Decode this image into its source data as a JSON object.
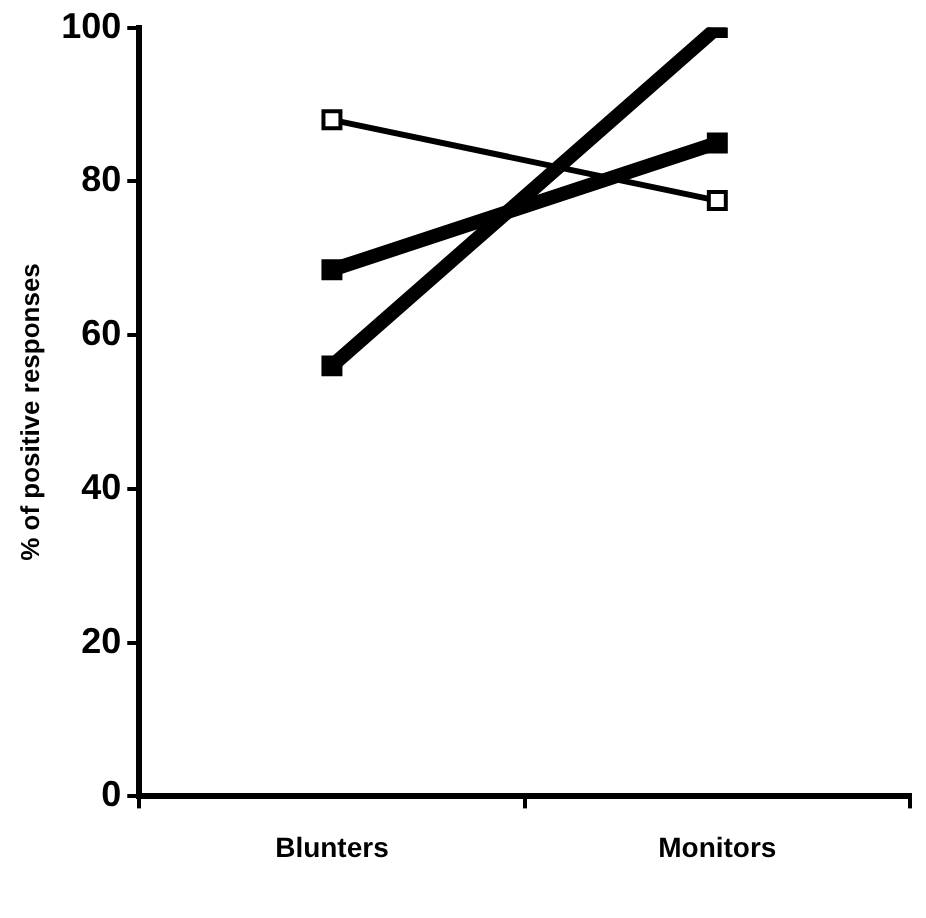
{
  "chart_data": {
    "type": "line",
    "ylabel": "% of positive responses",
    "categories": [
      "Blunters",
      "Monitors"
    ],
    "series": [
      {
        "color": "#ffffff",
        "values": [
          88,
          77.5
        ]
      },
      {
        "color": "#000000",
        "values": [
          68.5,
          85
        ]
      },
      {
        "color": "#000000",
        "values": [
          56,
          100
        ]
      }
    ],
    "ylim": [
      0,
      100
    ],
    "yticks": [
      0,
      20,
      40,
      60,
      80,
      100
    ],
    "grid": false,
    "legend": false,
    "marker": "square"
  }
}
